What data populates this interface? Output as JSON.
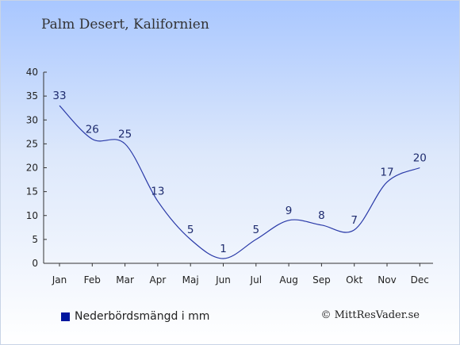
{
  "title": "Palm Desert, Kalifornien",
  "legend": {
    "label": "Nederbördsmängd i mm"
  },
  "credit": "© MittResVader.se",
  "colors": {
    "line": "#2a3aa8",
    "legend_swatch": "#00169e",
    "axis": "#333333"
  },
  "chart_data": {
    "type": "line",
    "categories": [
      "Jan",
      "Feb",
      "Mar",
      "Apr",
      "Maj",
      "Jun",
      "Jul",
      "Aug",
      "Sep",
      "Okt",
      "Nov",
      "Dec"
    ],
    "values": [
      33,
      26,
      25,
      13,
      5,
      1,
      5,
      9,
      8,
      7,
      17,
      20
    ],
    "data_labels": [
      "33",
      "26",
      "25",
      "13",
      "5",
      "1",
      "5",
      "9",
      "8",
      "7",
      "17",
      "20"
    ],
    "y_ticks": [
      0,
      5,
      10,
      15,
      20,
      25,
      30,
      35,
      40
    ],
    "ylim": [
      0,
      40
    ],
    "grid": false,
    "legend_position": "bottom-left"
  }
}
